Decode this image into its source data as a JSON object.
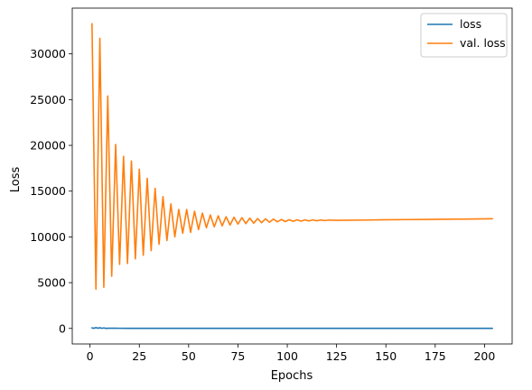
{
  "chart_data": {
    "type": "line",
    "title": "",
    "xlabel": "Epochs",
    "ylabel": "Loss",
    "xlim": [
      -9,
      214
    ],
    "ylim": [
      -1700,
      35000
    ],
    "xticks": [
      0,
      25,
      50,
      75,
      100,
      125,
      150,
      175,
      200
    ],
    "xtick_labels": [
      "0",
      "25",
      "50",
      "75",
      "100",
      "125",
      "150",
      "175",
      "200"
    ],
    "yticks": [
      0,
      5000,
      10000,
      15000,
      20000,
      25000,
      30000
    ],
    "ytick_labels": [
      "0",
      "5000",
      "10000",
      "15000",
      "20000",
      "25000",
      "30000"
    ],
    "grid": false,
    "legend_position": "upper right",
    "series": [
      {
        "name": "loss",
        "color": "#1f77b4",
        "x": [
          1,
          2,
          3,
          4,
          5,
          6,
          7,
          8,
          10,
          15,
          20,
          40,
          80,
          120,
          160,
          204
        ],
        "y": [
          60,
          10,
          90,
          20,
          70,
          15,
          50,
          10,
          20,
          15,
          10,
          5,
          5,
          5,
          5,
          5
        ]
      },
      {
        "name": "val. loss",
        "color": "#ff7f0e",
        "x": [
          1,
          3,
          5,
          7,
          9,
          11,
          13,
          15,
          17,
          19,
          21,
          23,
          25,
          27,
          29,
          31,
          33,
          35,
          37,
          39,
          41,
          43,
          45,
          47,
          49,
          51,
          53,
          55,
          57,
          59,
          61,
          63,
          65,
          67,
          69,
          71,
          73,
          75,
          77,
          79,
          81,
          83,
          85,
          87,
          89,
          91,
          93,
          95,
          97,
          99,
          101,
          103,
          105,
          107,
          109,
          111,
          113,
          115,
          117,
          119,
          121,
          125,
          130,
          140,
          150,
          160,
          170,
          180,
          190,
          200,
          204
        ],
        "y": [
          33300,
          4300,
          31700,
          4500,
          25400,
          5700,
          20100,
          7000,
          18800,
          7100,
          18300,
          7600,
          17400,
          8000,
          16400,
          8500,
          15300,
          9200,
          14400,
          9600,
          13600,
          10000,
          13000,
          10400,
          13000,
          10500,
          12800,
          10800,
          12600,
          11000,
          12400,
          11100,
          12300,
          11200,
          12200,
          11300,
          12150,
          11400,
          12100,
          11450,
          12050,
          11500,
          12000,
          11550,
          11980,
          11600,
          11950,
          11650,
          11900,
          11680,
          11880,
          11700,
          11870,
          11720,
          11860,
          11740,
          11850,
          11760,
          11850,
          11780,
          11840,
          11810,
          11820,
          11840,
          11870,
          11890,
          11910,
          11930,
          11950,
          11970,
          11980
        ]
      }
    ]
  }
}
